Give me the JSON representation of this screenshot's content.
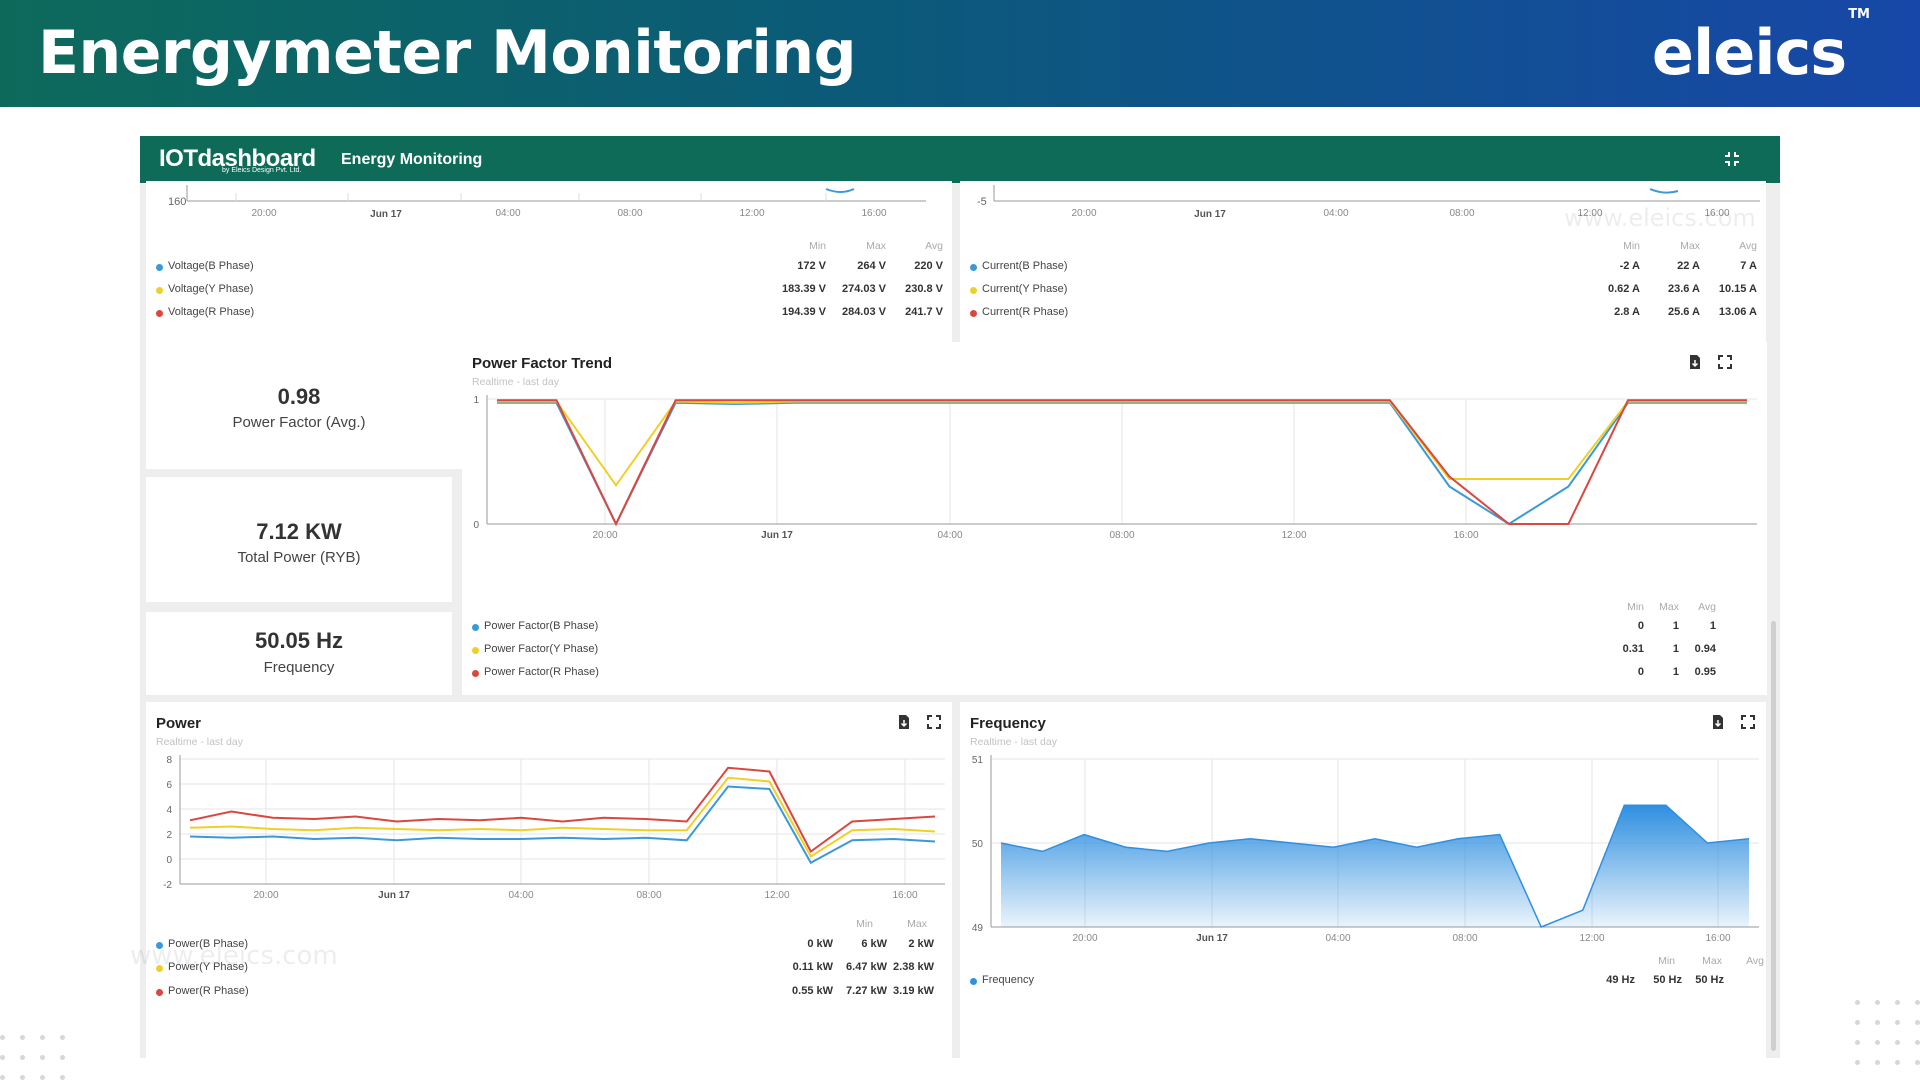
{
  "banner": {
    "title": "Energymeter Monitoring",
    "brand": "eleics",
    "brand_mark": "TM"
  },
  "app": {
    "logo": "IOTdashboard",
    "logo_sub": "by Eleics Design Pvt. Ltd.",
    "title": "Energy Monitoring",
    "watermark": "www.eleics.com"
  },
  "colors": {
    "b_phase": "#3a9ad9",
    "y_phase": "#f0d026",
    "r_phase": "#d9473f",
    "header": "#0e6b58",
    "frequency": "#2f8fe0"
  },
  "legend_heads": {
    "min": "Min",
    "max": "Max",
    "avg": "Avg"
  },
  "voltage": {
    "axis_label": "160",
    "x_ticks": [
      "20:00",
      "Jun 17",
      "04:00",
      "08:00",
      "12:00",
      "16:00"
    ],
    "legend": [
      {
        "name": "Voltage(B Phase)",
        "min": "172 V",
        "max": "264 V",
        "avg": "220 V"
      },
      {
        "name": "Voltage(Y Phase)",
        "min": "183.39 V",
        "max": "274.03 V",
        "avg": "230.8 V"
      },
      {
        "name": "Voltage(R Phase)",
        "min": "194.39 V",
        "max": "284.03 V",
        "avg": "241.7 V"
      }
    ]
  },
  "current": {
    "axis_label": "-5",
    "x_ticks": [
      "20:00",
      "Jun 17",
      "04:00",
      "08:00",
      "12:00",
      "16:00"
    ],
    "legend": [
      {
        "name": "Current(B Phase)",
        "min": "-2 A",
        "max": "22 A",
        "avg": "7 A"
      },
      {
        "name": "Current(Y Phase)",
        "min": "0.62 A",
        "max": "23.6 A",
        "avg": "10.15 A"
      },
      {
        "name": "Current(R Phase)",
        "min": "2.8 A",
        "max": "25.6 A",
        "avg": "13.06 A"
      }
    ]
  },
  "stats": [
    {
      "value": "0.98",
      "label": "Power Factor (Avg.)"
    },
    {
      "value": "7.12 KW",
      "label": "Total Power (RYB)"
    },
    {
      "value": "50.05 Hz",
      "label": "Frequency"
    }
  ],
  "power_factor": {
    "title": "Power Factor Trend",
    "subtitle": "Realtime - last day",
    "legend": [
      {
        "name": "Power Factor(B Phase)",
        "min": "0",
        "max": "1",
        "avg": "1"
      },
      {
        "name": "Power Factor(Y Phase)",
        "min": "0.31",
        "max": "1",
        "avg": "0.94"
      },
      {
        "name": "Power Factor(R Phase)",
        "min": "0",
        "max": "1",
        "avg": "0.95"
      }
    ]
  },
  "power": {
    "title": "Power",
    "subtitle": "Realtime - last day",
    "legend": [
      {
        "name": "Power(B Phase)",
        "min": "0 kW",
        "max": "6 kW",
        "avg": "2 kW"
      },
      {
        "name": "Power(Y Phase)",
        "min": "0.11 kW",
        "max": "6.47 kW",
        "avg": "2.38 kW"
      },
      {
        "name": "Power(R Phase)",
        "min": "0.55 kW",
        "max": "7.27 kW",
        "avg": "3.19 kW"
      }
    ]
  },
  "frequency_chart": {
    "title": "Frequency",
    "subtitle": "Realtime - last day",
    "legend": [
      {
        "name": "Frequency",
        "min": "49 Hz",
        "max": "50 Hz",
        "avg": "50 Hz"
      }
    ]
  },
  "chart_data": [
    {
      "id": "power_factor",
      "type": "line",
      "title": "Power Factor Trend",
      "x_ticks": [
        "20:00",
        "Jun 17",
        "04:00",
        "08:00",
        "12:00",
        "16:00"
      ],
      "ylim": [
        0,
        1
      ],
      "y_ticks": [
        0,
        1
      ],
      "grid": true,
      "legend": "bottom",
      "x": [
        "17:00",
        "17:30",
        "18:00",
        "18:30",
        "19:00",
        "19:30",
        "20:00",
        "22:00",
        "Jun 17",
        "02:00",
        "04:00",
        "06:00",
        "08:00",
        "10:00",
        "12:00",
        "13:30",
        "14:00",
        "14:30",
        "15:00",
        "15:30",
        "16:00",
        "17:00"
      ],
      "series": [
        {
          "name": "Power Factor(B Phase)",
          "values": [
            0.97,
            0.97,
            0.0,
            0.97,
            0.96,
            0.97,
            0.97,
            0.97,
            0.97,
            0.97,
            0.97,
            0.97,
            0.97,
            0.97,
            0.97,
            0.97,
            0.3,
            0.0,
            0.3,
            0.97,
            0.97,
            0.97
          ]
        },
        {
          "name": "Power Factor(Y Phase)",
          "values": [
            0.98,
            0.98,
            0.31,
            0.98,
            0.97,
            0.98,
            0.98,
            0.98,
            0.98,
            0.98,
            0.98,
            0.98,
            0.98,
            0.98,
            0.98,
            0.98,
            0.36,
            0.36,
            0.36,
            0.98,
            0.98,
            0.98
          ]
        },
        {
          "name": "Power Factor(R Phase)",
          "values": [
            0.99,
            0.99,
            0.0,
            0.99,
            0.99,
            0.99,
            0.99,
            0.99,
            0.99,
            0.99,
            0.99,
            0.99,
            0.99,
            0.99,
            0.99,
            0.99,
            0.38,
            0.0,
            0.0,
            0.99,
            0.99,
            0.99
          ]
        }
      ]
    },
    {
      "id": "power",
      "type": "line",
      "title": "Power",
      "x_ticks": [
        "20:00",
        "Jun 17",
        "04:00",
        "08:00",
        "12:00",
        "16:00"
      ],
      "ylim": [
        -2,
        8
      ],
      "y_ticks": [
        -2,
        0,
        2,
        4,
        6,
        8
      ],
      "grid": true,
      "legend": "bottom",
      "x": [
        "17:00",
        "18:00",
        "19:00",
        "20:00",
        "22:00",
        "Jun 17",
        "02:00",
        "04:00",
        "06:00",
        "08:00",
        "10:00",
        "12:00",
        "13:00",
        "13:30",
        "14:00",
        "14:30",
        "15:00",
        "16:00",
        "17:00"
      ],
      "series": [
        {
          "name": "Power(B Phase)",
          "values": [
            1.8,
            1.7,
            1.8,
            1.6,
            1.7,
            1.5,
            1.7,
            1.6,
            1.6,
            1.7,
            1.6,
            1.7,
            1.5,
            5.8,
            5.6,
            -0.3,
            1.5,
            1.6,
            1.4
          ]
        },
        {
          "name": "Power(Y Phase)",
          "values": [
            2.5,
            2.6,
            2.4,
            2.3,
            2.5,
            2.4,
            2.3,
            2.4,
            2.3,
            2.5,
            2.4,
            2.3,
            2.3,
            6.5,
            6.2,
            0.2,
            2.3,
            2.4,
            2.2
          ]
        },
        {
          "name": "Power(R Phase)",
          "values": [
            3.1,
            3.8,
            3.3,
            3.2,
            3.4,
            3.0,
            3.2,
            3.1,
            3.3,
            3.0,
            3.3,
            3.2,
            3.0,
            7.3,
            7.0,
            0.6,
            3.0,
            3.2,
            3.4
          ]
        }
      ]
    },
    {
      "id": "frequency",
      "type": "area",
      "title": "Frequency",
      "x_ticks": [
        "20:00",
        "Jun 17",
        "04:00",
        "08:00",
        "12:00",
        "16:00"
      ],
      "ylim": [
        49,
        51
      ],
      "y_ticks": [
        49,
        50,
        51
      ],
      "grid": true,
      "legend": "bottom",
      "x": [
        "17:00",
        "18:00",
        "19:00",
        "20:00",
        "22:00",
        "Jun 17",
        "02:00",
        "04:00",
        "06:00",
        "08:00",
        "10:00",
        "12:00",
        "13:30",
        "14:30",
        "15:00",
        "15:30",
        "16:00",
        "16:30",
        "17:00"
      ],
      "series": [
        {
          "name": "Frequency",
          "values": [
            50.0,
            49.9,
            50.1,
            49.95,
            49.9,
            50.0,
            50.05,
            50.0,
            49.95,
            50.05,
            49.95,
            50.05,
            50.1,
            49.0,
            49.2,
            50.45,
            50.45,
            50.0,
            50.05
          ]
        }
      ]
    }
  ]
}
